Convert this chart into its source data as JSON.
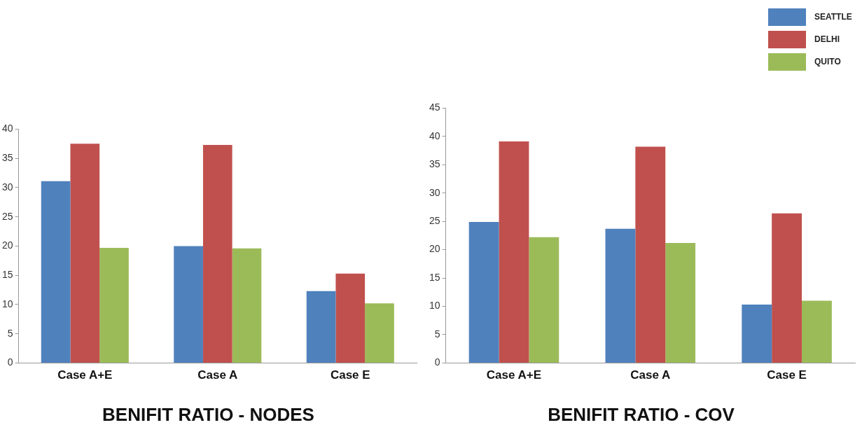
{
  "chart_data": [
    {
      "type": "bar",
      "title": "BENIFIT RATIO - NODES",
      "categories": [
        "Case A+E",
        "Case A",
        "Case E"
      ],
      "series": [
        {
          "name": "SEATTLE",
          "color": "#4f81bd",
          "values": [
            31.1,
            20.0,
            12.3
          ]
        },
        {
          "name": "DELHI",
          "color": "#c0504d",
          "values": [
            37.5,
            37.3,
            15.3
          ]
        },
        {
          "name": "QUITO",
          "color": "#9bbb59",
          "values": [
            19.7,
            19.6,
            10.2
          ]
        }
      ],
      "ylim": [
        0,
        40
      ],
      "yticks": [
        0,
        5,
        10,
        15,
        20,
        25,
        30,
        35,
        40
      ],
      "grid": false,
      "legend": "top right"
    },
    {
      "type": "bar",
      "title": "BENIFIT RATIO - COV",
      "categories": [
        "Case A+E",
        "Case A",
        "Case E"
      ],
      "series": [
        {
          "color": "#4f81bd",
          "values": [
            24.9,
            23.7,
            10.3
          ]
        },
        {
          "color": "#c0504d",
          "values": [
            39.1,
            38.2,
            26.4
          ]
        },
        {
          "color": "#9bbb59",
          "values": [
            22.2,
            21.2,
            11.0
          ]
        }
      ],
      "ylim": [
        0,
        45
      ],
      "yticks": [
        0,
        5,
        10,
        15,
        20,
        25,
        30,
        35,
        40,
        45
      ],
      "grid": false
    }
  ]
}
